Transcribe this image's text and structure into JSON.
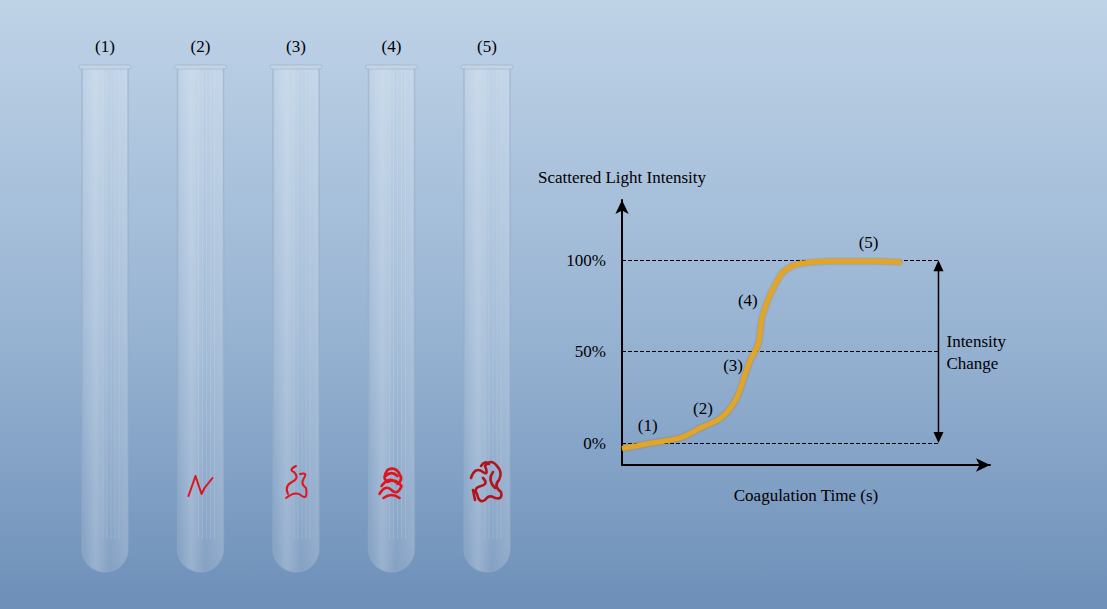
{
  "tubes": [
    {
      "label": "(1)"
    },
    {
      "label": "(2)"
    },
    {
      "label": "(3)"
    },
    {
      "label": "(4)"
    },
    {
      "label": "(5)"
    }
  ],
  "chart_data": {
    "type": "line",
    "y_label": "Scattered Light Intensity",
    "x_label": "Coagulation Time (s)",
    "x": [
      0,
      8,
      16,
      21,
      27,
      31,
      33,
      35,
      37,
      38,
      40,
      42,
      44,
      48,
      57,
      67,
      76
    ],
    "values": [
      -3,
      0,
      3,
      8,
      14,
      24,
      35,
      46,
      54,
      68,
      80,
      88,
      94,
      98,
      99.5,
      99.5,
      99
    ],
    "color": "#e3a526",
    "xlim": [
      0,
      100
    ],
    "ylim": [
      -12,
      133
    ],
    "yticks": [
      {
        "value": 0,
        "label": "0%"
      },
      {
        "value": 50,
        "label": "50%"
      },
      {
        "value": 100,
        "label": "100%"
      }
    ],
    "grid": true,
    "tick_labels": "y",
    "annotations": [
      {
        "text": "(1)",
        "x": 7,
        "y": 0
      },
      {
        "text": "(2)",
        "x": 22,
        "y": 9
      },
      {
        "text": "(3)",
        "x": 36.7,
        "y": 50
      },
      {
        "text": "(4)",
        "x": 38,
        "y": 68
      },
      {
        "text": "(5)",
        "x": 67,
        "y": 99.5
      }
    ],
    "bracket": {
      "text": "Intensity Change",
      "from": 0,
      "to": 100
    }
  }
}
